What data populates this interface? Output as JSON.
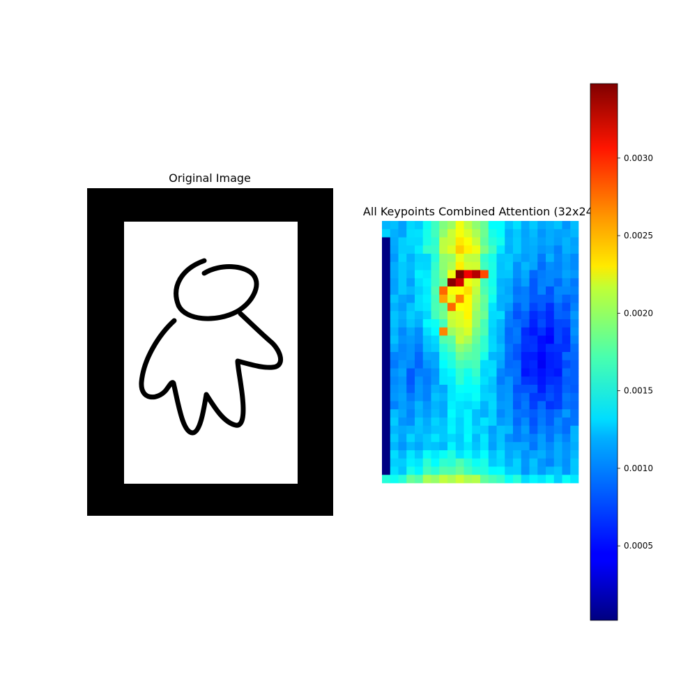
{
  "panels": {
    "original": {
      "title": "Original Image"
    },
    "attention": {
      "title": "All Keypoints Combined Attention (32x24)"
    }
  },
  "chart_data": [
    {
      "type": "image",
      "title": "Original Image",
      "description_of_content": "black frame around white page with a black line drawing",
      "colors": {
        "frame": "#000000",
        "paper": "#ffffff",
        "ink": "#000000"
      }
    },
    {
      "type": "heatmap",
      "title": "All Keypoints Combined Attention (32x24)",
      "rows": 32,
      "cols": 24,
      "colormap": "jet",
      "vmin": 2e-05,
      "vmax": 0.00348,
      "colorbar": {
        "ticks": [
          0.0005,
          0.001,
          0.0015,
          0.002,
          0.0025,
          0.003
        ],
        "tick_labels": [
          "0.0005",
          "0.0010",
          "0.0015",
          "0.0020",
          "0.0025",
          "0.0030"
        ]
      },
      "hotspots": [
        {
          "row": 6,
          "col": 9,
          "value": 0.00348
        },
        {
          "row": 6,
          "col": 10,
          "value": 0.0031
        },
        {
          "row": 6,
          "col": 11,
          "value": 0.0033
        },
        {
          "row": 6,
          "col": 12,
          "value": 0.0028
        },
        {
          "row": 7,
          "col": 8,
          "value": 0.00345
        },
        {
          "row": 7,
          "col": 9,
          "value": 0.0032
        },
        {
          "row": 8,
          "col": 7,
          "value": 0.0027
        },
        {
          "row": 9,
          "col": 7,
          "value": 0.0025
        },
        {
          "row": 9,
          "col": 9,
          "value": 0.0026
        },
        {
          "row": 10,
          "col": 8,
          "value": 0.0027
        },
        {
          "row": 13,
          "col": 7,
          "value": 0.0026
        }
      ],
      "left_column_low": {
        "col": 0,
        "row_start": 2,
        "row_end": 30,
        "value": 3e-05
      }
    }
  ]
}
